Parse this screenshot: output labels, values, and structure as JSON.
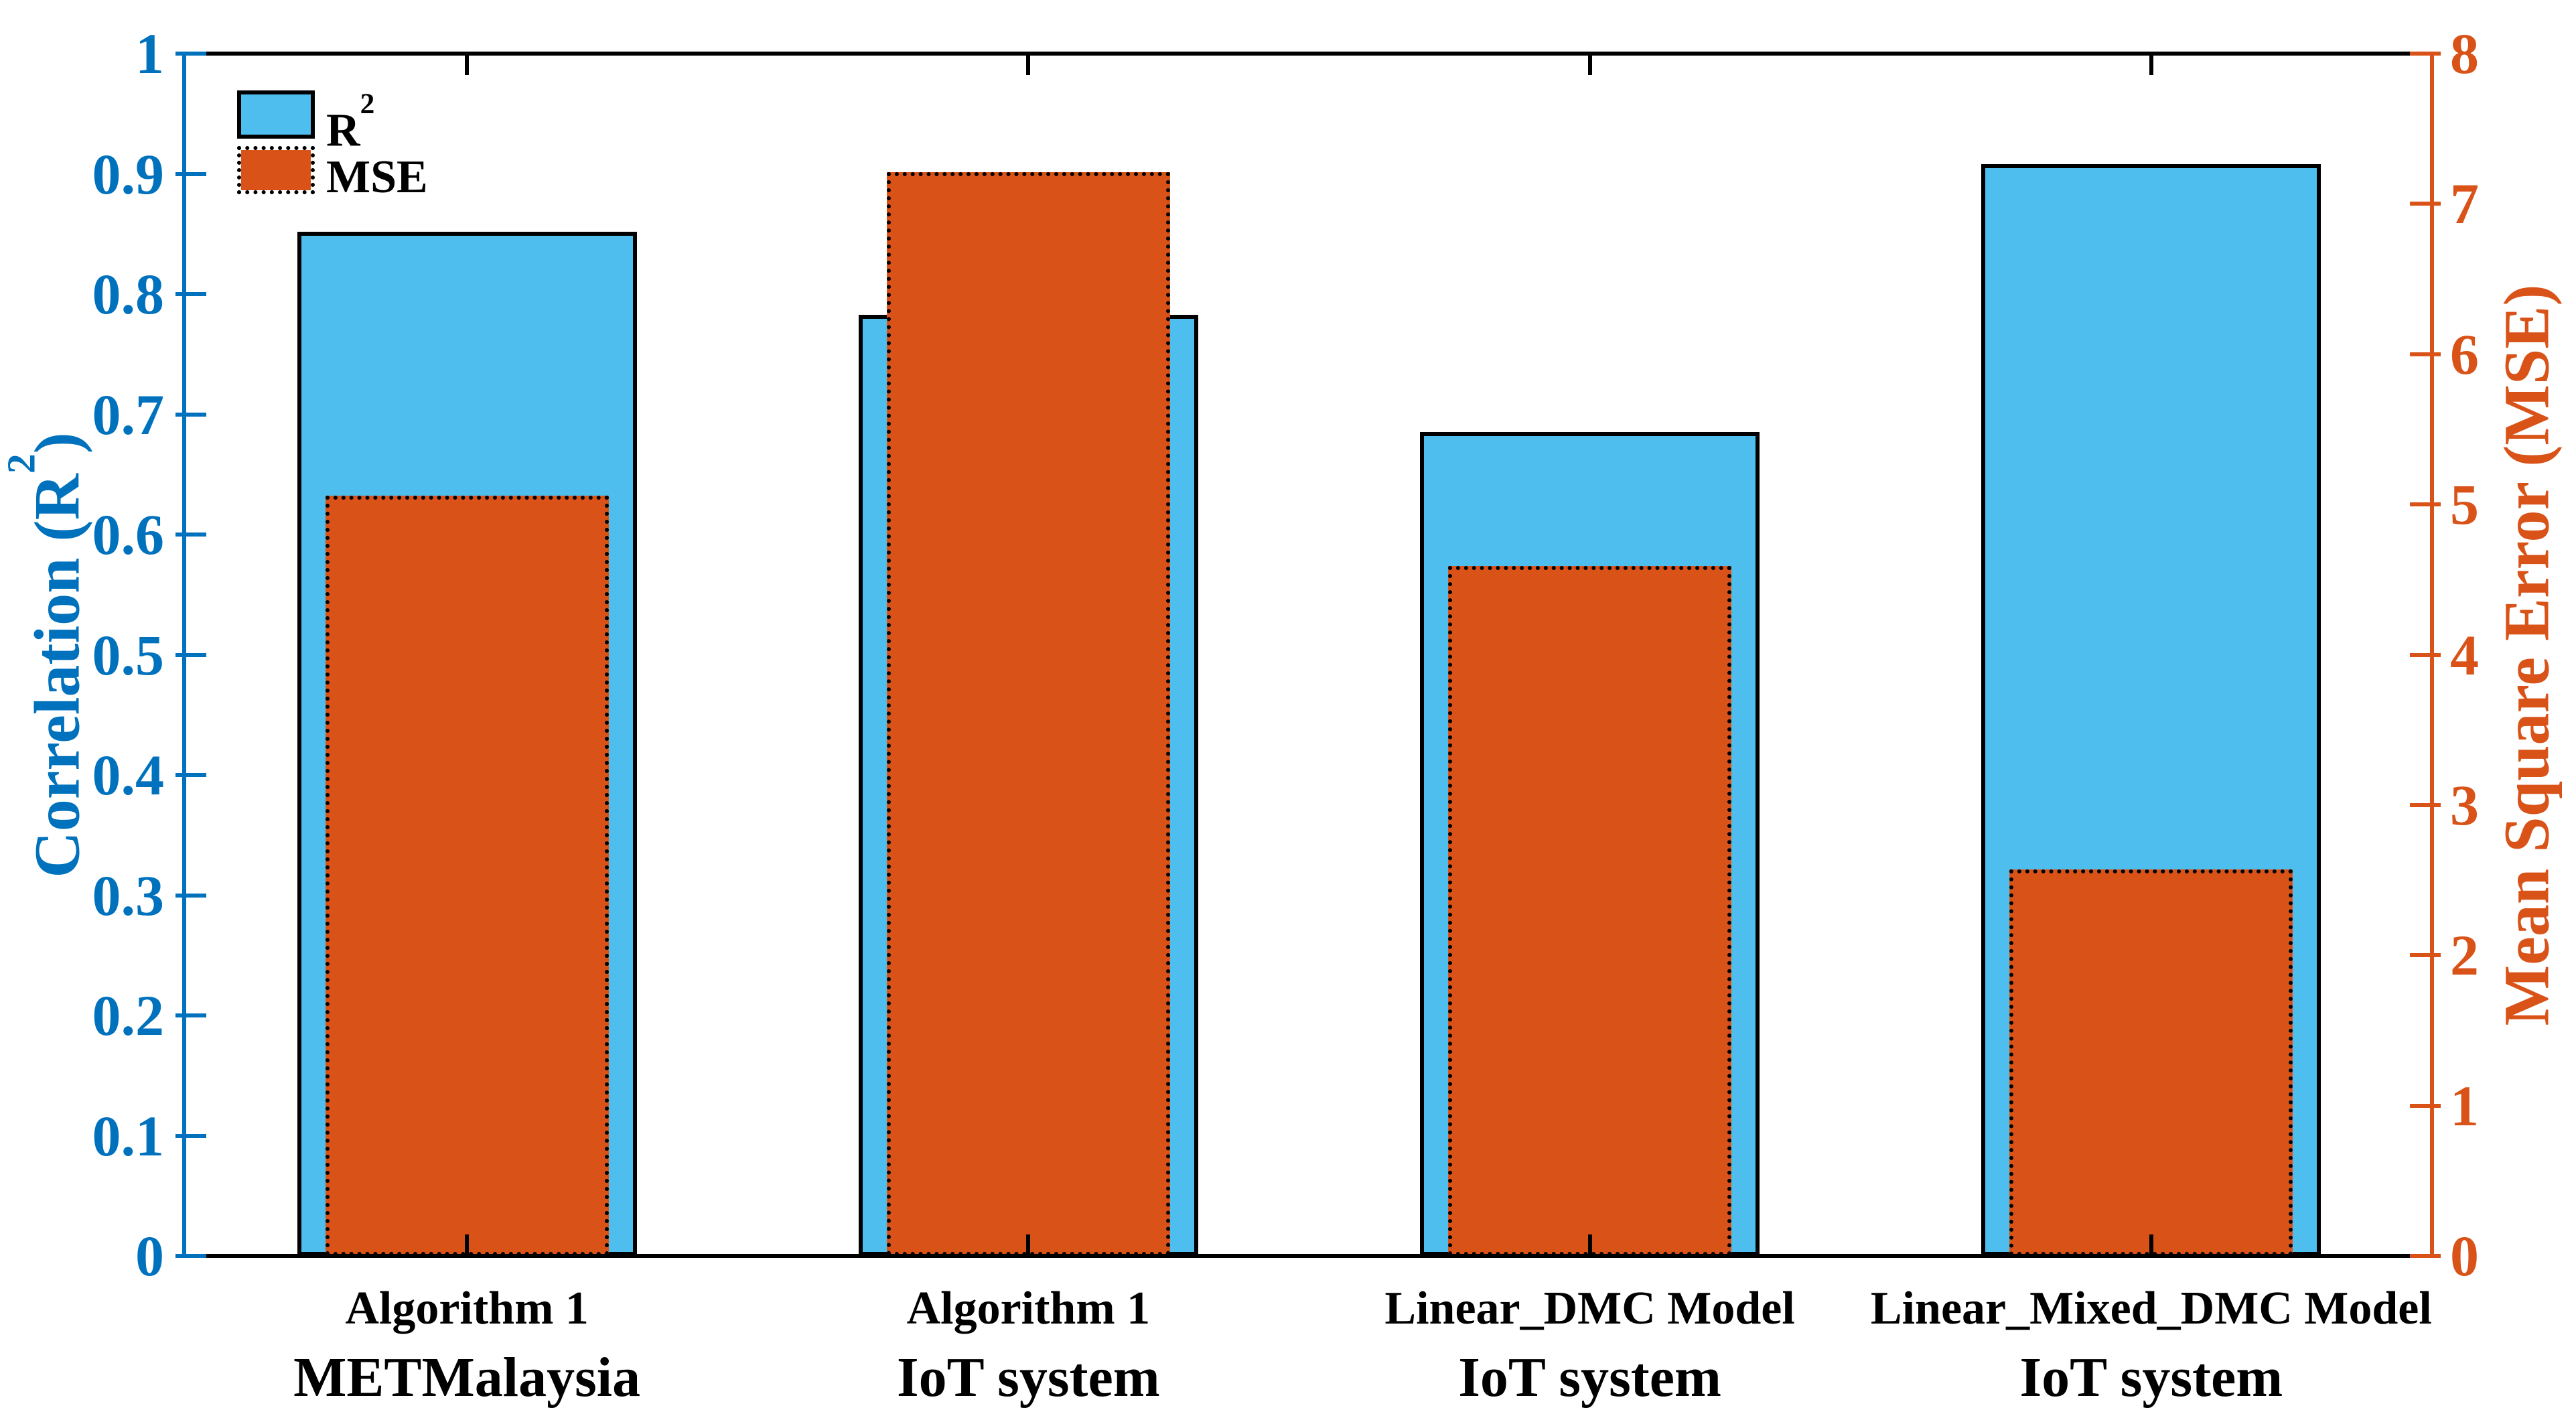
{
  "chart_data": {
    "type": "bar",
    "title": "",
    "categories": [
      {
        "line1": "Algorithm 1",
        "line2": "METMalaysia"
      },
      {
        "line1": "Algorithm 1",
        "line2": "IoT system"
      },
      {
        "line1": "Linear_DMC Model",
        "line2": "IoT system"
      },
      {
        "line1": "Linear_Mixed_DMC Model",
        "line2": "IoT system"
      }
    ],
    "series": [
      {
        "name": "R2",
        "axis": "left",
        "values": [
          0.852,
          0.783,
          0.685,
          0.908
        ],
        "fill": "#4DBEEE",
        "border_style": "solid"
      },
      {
        "name": "MSE",
        "axis": "right",
        "values": [
          5.06,
          7.21,
          4.59,
          2.57
        ],
        "fill": "#D95319",
        "border_style": "dotted"
      }
    ],
    "left_axis": {
      "label_pre": "Correlation (R",
      "label_sup": "2",
      "label_post": ")",
      "min": 0,
      "max": 1,
      "tick_values": [
        0,
        0.1,
        0.2,
        0.3,
        0.4,
        0.5,
        0.6,
        0.7,
        0.8,
        0.9,
        1
      ],
      "tick_labels": [
        "0",
        "0.1",
        "0.2",
        "0.3",
        "0.4",
        "0.5",
        "0.6",
        "0.7",
        "0.8",
        "0.9",
        "1"
      ],
      "color": "#0072BD"
    },
    "right_axis": {
      "label": "Mean Square Error (MSE)",
      "min": 0,
      "max": 8,
      "tick_values": [
        0,
        1,
        2,
        3,
        4,
        5,
        6,
        7,
        8
      ],
      "tick_labels": [
        "0",
        "1",
        "2",
        "3",
        "4",
        "5",
        "6",
        "7",
        "8"
      ],
      "color": "#D95319"
    },
    "legend": {
      "r2_base": "R",
      "r2_sup": "2",
      "mse_label": "MSE"
    },
    "grid": false,
    "legend_position": "top-left-inside",
    "frame_color": "#000000",
    "background": "#ffffff"
  }
}
